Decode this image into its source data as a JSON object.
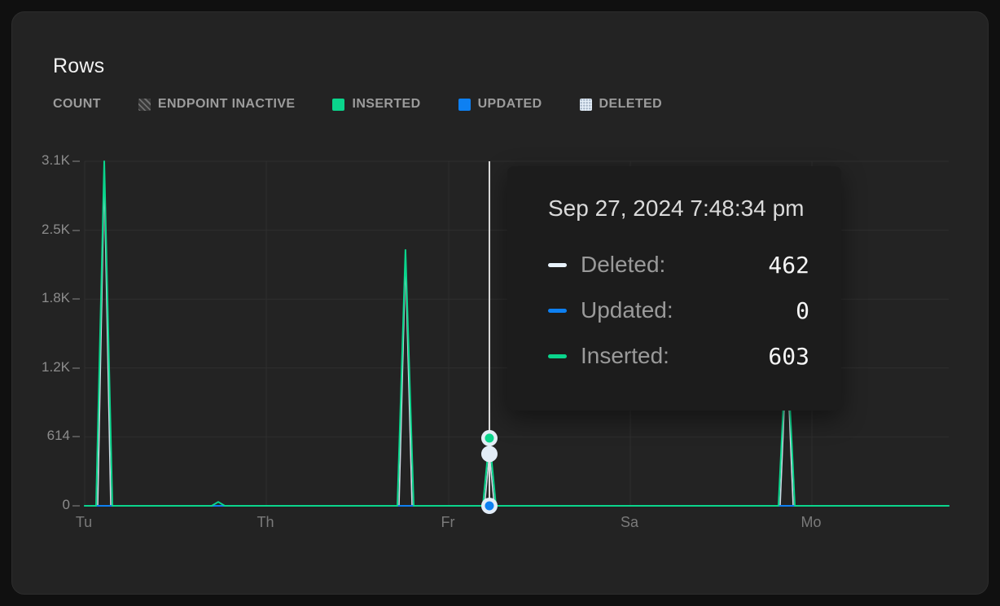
{
  "colors": {
    "inserted": "#0ad58c",
    "updated": "#0d80f2",
    "deleted_swatch": "#e4eef8",
    "deleted_line": "#cdd9e5",
    "crosshair": "#dedede",
    "grid": "#2f2f2f",
    "marker_ring": "#e3edf7"
  },
  "card": {
    "title": "Rows"
  },
  "legend": {
    "count_label": "COUNT",
    "items": [
      {
        "label": "ENDPOINT INACTIVE",
        "swatch": "hatched"
      },
      {
        "label": "INSERTED",
        "swatch": "solid",
        "color": "#0ad58c"
      },
      {
        "label": "UPDATED",
        "swatch": "solid",
        "color": "#0d80f2"
      },
      {
        "label": "DELETED",
        "swatch": "dotted",
        "color": "#e4eef8"
      }
    ]
  },
  "chart_data": {
    "type": "line",
    "title": "Rows",
    "ylabel": "COUNT",
    "ylim": [
      0,
      3070
    ],
    "grid": true,
    "y_ticks": [
      {
        "label": "3.1K",
        "value": 3070
      },
      {
        "label": "2.5K",
        "value": 2456
      },
      {
        "label": "1.8K",
        "value": 1842
      },
      {
        "label": "1.2K",
        "value": 1228
      },
      {
        "label": "614",
        "value": 614
      },
      {
        "label": "0",
        "value": 0
      }
    ],
    "x_ticks": [
      {
        "label": "Tu",
        "f": 0.0
      },
      {
        "label": "Th",
        "f": 0.2102
      },
      {
        "label": "Fr",
        "f": 0.4213
      },
      {
        "label": "Sa",
        "f": 0.6315
      },
      {
        "label": "Mo",
        "f": 0.8417
      }
    ],
    "series": [
      {
        "name": "Deleted",
        "color": "#cdd9e5",
        "width": 1.6,
        "points": [
          [
            0,
            0
          ],
          [
            0.0151,
            0
          ],
          [
            0.0226,
            2950
          ],
          [
            0.0302,
            0
          ],
          [
            0.3638,
            0
          ],
          [
            0.3713,
            2200
          ],
          [
            0.3789,
            0
          ],
          [
            0.4628,
            0
          ],
          [
            0.4684,
            462
          ],
          [
            0.4741,
            0
          ],
          [
            0.8049,
            0
          ],
          [
            0.8124,
            1400
          ],
          [
            0.82,
            0
          ],
          [
            1,
            0
          ]
        ]
      },
      {
        "name": "Updated",
        "color": "#0d80f2",
        "width": 2,
        "points": [
          [
            0,
            0
          ],
          [
            1,
            0
          ]
        ]
      },
      {
        "name": "Inserted",
        "color": "#0ad58c",
        "width": 2,
        "points": [
          [
            0,
            0
          ],
          [
            0.0132,
            0
          ],
          [
            0.0226,
            3070
          ],
          [
            0.032,
            0
          ],
          [
            0.147,
            0
          ],
          [
            0.1546,
            35
          ],
          [
            0.1621,
            0
          ],
          [
            0.3619,
            0
          ],
          [
            0.3713,
            2280
          ],
          [
            0.3808,
            0
          ],
          [
            0.4609,
            0
          ],
          [
            0.4684,
            603
          ],
          [
            0.476,
            0
          ],
          [
            0.803,
            0
          ],
          [
            0.8124,
            1500
          ],
          [
            0.8219,
            0
          ],
          [
            1,
            0
          ]
        ]
      }
    ],
    "crosshair_f": 0.4684,
    "markers": [
      {
        "series": "Inserted",
        "f": 0.4684,
        "value": 603,
        "color": "#0ad58c"
      },
      {
        "series": "Deleted",
        "f": 0.4684,
        "value": 462,
        "color": "#e3edf7"
      },
      {
        "series": "Updated",
        "f": 0.4684,
        "value": 0,
        "color": "#0d80f2"
      }
    ]
  },
  "tooltip": {
    "title": "Sep 27, 2024 7:48:34 pm",
    "rows": [
      {
        "label": "Deleted:",
        "value": "462",
        "color": "#e8f2fb"
      },
      {
        "label": "Updated:",
        "value": "0",
        "color": "#0d80f2"
      },
      {
        "label": "Inserted:",
        "value": "603",
        "color": "#0ad58c"
      }
    ]
  }
}
